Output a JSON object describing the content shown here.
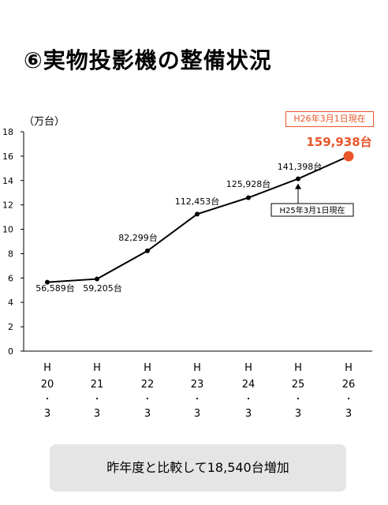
{
  "title": "⑥実物投影機の整備状況",
  "chart_data": {
    "type": "line",
    "unit_label": "（万台）",
    "badge": "H26年3月1日現在",
    "callout": "H25年3月1日現在",
    "ylim": [
      0,
      18
    ],
    "yticks": [
      "0",
      "2",
      "4",
      "6",
      "8",
      "10",
      "12",
      "14",
      "16",
      "18"
    ],
    "categories": [
      [
        "H",
        "20",
        "・",
        "3"
      ],
      [
        "H",
        "21",
        "・",
        "3"
      ],
      [
        "H",
        "22",
        "・",
        "3"
      ],
      [
        "H",
        "23",
        "・",
        "3"
      ],
      [
        "H",
        "24",
        "・",
        "3"
      ],
      [
        "H",
        "25",
        "・",
        "3"
      ],
      [
        "H",
        "26",
        "・",
        "3"
      ]
    ],
    "values": [
      5.6589,
      5.9205,
      8.2299,
      11.2453,
      12.5928,
      14.1398,
      15.9938
    ],
    "labels": [
      "56,589台",
      "59,205台",
      "82,299台",
      "112,453台",
      "125,928台",
      "141,398台",
      "159,938台"
    ],
    "highlight_color": "#e8562a",
    "line_color": "#000000"
  },
  "footer": "昨年度と比較して18,540台増加"
}
